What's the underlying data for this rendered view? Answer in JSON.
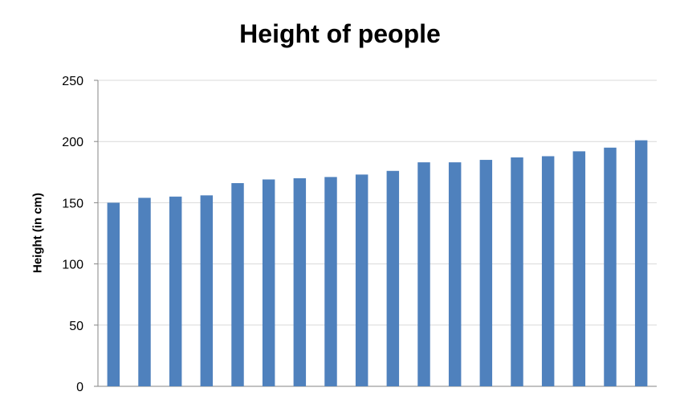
{
  "chart_data": {
    "type": "bar",
    "title": "Height of people",
    "xlabel": "",
    "ylabel": "Height (in cm)",
    "ylim": [
      0,
      250
    ],
    "yticks": [
      0,
      50,
      100,
      150,
      200,
      250
    ],
    "grid": true,
    "legend": "none",
    "bar_color": "#4f81bd",
    "series": [
      {
        "values": [
          150,
          154,
          155,
          156,
          166,
          169,
          170,
          171,
          173,
          176,
          183,
          183,
          185,
          187,
          188,
          192,
          195,
          201
        ]
      }
    ]
  }
}
